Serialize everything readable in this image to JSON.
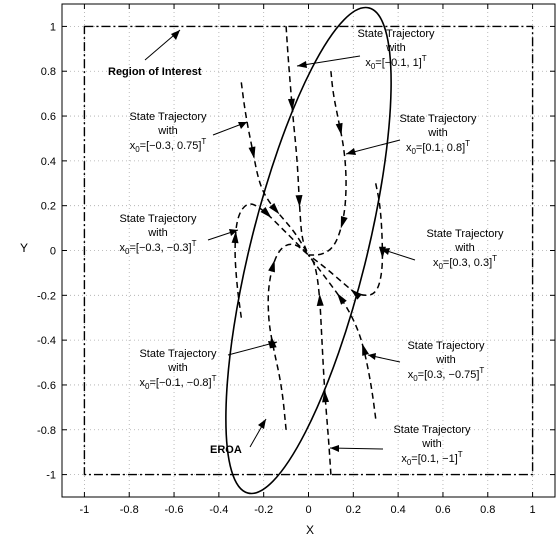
{
  "chart_data": {
    "type": "line",
    "xlabel": "X",
    "ylabel": "Y",
    "xlim": [
      -1.1,
      1.1
    ],
    "ylim": [
      -1.1,
      1.1
    ],
    "xticks": [
      "-1",
      "-0.8",
      "-0.6",
      "-0.4",
      "-0.2",
      "0",
      "0.2",
      "0.4",
      "0.6",
      "0.8",
      "1"
    ],
    "yticks": [
      "-1",
      "-0.8",
      "-0.6",
      "-0.4",
      "-0.2",
      "0",
      "0.2",
      "0.4",
      "0.6",
      "0.8",
      "1"
    ],
    "grid": true,
    "region_of_interest": {
      "label": "Region of  Interest",
      "x": [
        -1,
        1
      ],
      "y": [
        -1,
        1
      ],
      "style": "dash-dot"
    },
    "eroa": {
      "label": "EROA",
      "center": [
        0,
        0
      ],
      "style": "solid"
    },
    "trajectories": [
      {
        "id": "t1",
        "line1": "State Trajectory",
        "line2": "with",
        "x0": "x",
        "sub": "0",
        "val": "=[−0.1, 1]",
        "sup": "T",
        "points": [
          [
            -0.1,
            1.0
          ],
          [
            -0.09,
            0.85
          ],
          [
            -0.07,
            0.6
          ],
          [
            -0.05,
            0.4
          ],
          [
            -0.04,
            0.2
          ],
          [
            -0.03,
            0.05
          ],
          [
            0.0,
            -0.02
          ]
        ]
      },
      {
        "id": "t2",
        "line1": "State Trajectory",
        "line2": "with",
        "x0": "x",
        "sub": "0",
        "val": "=[0.1, 0.8]",
        "sup": "T",
        "points": [
          [
            0.1,
            0.8
          ],
          [
            0.11,
            0.7
          ],
          [
            0.13,
            0.6
          ],
          [
            0.16,
            0.45
          ],
          [
            0.17,
            0.3
          ],
          [
            0.16,
            0.15
          ],
          [
            0.12,
            0.02
          ],
          [
            0.06,
            -0.02
          ],
          [
            0.0,
            -0.02
          ]
        ]
      },
      {
        "id": "t3",
        "line1": "State Trajectory",
        "line2": "with",
        "x0": "x",
        "sub": "0",
        "val": "=[0.3, 0.3]",
        "sup": "T",
        "points": [
          [
            0.3,
            0.3
          ],
          [
            0.32,
            0.2
          ],
          [
            0.33,
            0.05
          ],
          [
            0.33,
            -0.1
          ],
          [
            0.3,
            -0.2
          ],
          [
            0.22,
            -0.2
          ],
          [
            0.16,
            -0.15
          ],
          [
            0.08,
            -0.08
          ],
          [
            0.0,
            -0.02
          ]
        ]
      },
      {
        "id": "t4",
        "line1": "State Trajectory",
        "line2": "with",
        "x0": "x",
        "sub": "0",
        "val": "=[0.3, −0.75]",
        "sup": "T",
        "points": [
          [
            0.3,
            -0.75
          ],
          [
            0.28,
            -0.6
          ],
          [
            0.25,
            -0.45
          ],
          [
            0.22,
            -0.35
          ],
          [
            0.17,
            -0.25
          ],
          [
            0.12,
            -0.18
          ],
          [
            0.06,
            -0.1
          ],
          [
            0.0,
            -0.02
          ]
        ]
      },
      {
        "id": "t5",
        "line1": "State Trajectory",
        "line2": "with",
        "x0": "x",
        "sub": "0",
        "val": "=[0.1, −1]",
        "sup": "T",
        "points": [
          [
            0.1,
            -1.0
          ],
          [
            0.09,
            -0.85
          ],
          [
            0.07,
            -0.6
          ],
          [
            0.06,
            -0.4
          ],
          [
            0.05,
            -0.2
          ],
          [
            0.03,
            -0.06
          ],
          [
            0.0,
            -0.02
          ]
        ]
      },
      {
        "id": "t6",
        "line1": "State Trajectory",
        "line2": "with",
        "x0": "x",
        "sub": "0",
        "val": "=[−0.1, −0.8]",
        "sup": "T",
        "points": [
          [
            -0.1,
            -0.8
          ],
          [
            -0.12,
            -0.6
          ],
          [
            -0.16,
            -0.42
          ],
          [
            -0.18,
            -0.3
          ],
          [
            -0.18,
            -0.15
          ],
          [
            -0.14,
            0.0
          ],
          [
            -0.07,
            0.04
          ],
          [
            0.0,
            -0.02
          ]
        ]
      },
      {
        "id": "t7",
        "line1": "State Trajectory",
        "line2": "with",
        "x0": "x",
        "sub": "0",
        "val": "=[−0.3, −0.3]",
        "sup": "T",
        "points": [
          [
            -0.3,
            -0.3
          ],
          [
            -0.32,
            -0.15
          ],
          [
            -0.33,
            0.0
          ],
          [
            -0.32,
            0.15
          ],
          [
            -0.27,
            0.22
          ],
          [
            -0.2,
            0.18
          ],
          [
            -0.12,
            0.1
          ],
          [
            -0.05,
            0.03
          ],
          [
            0.0,
            -0.02
          ]
        ]
      },
      {
        "id": "t8",
        "line1": "State Trajectory",
        "line2": "with",
        "x0": "x",
        "sub": "0",
        "val": "=[−0.3, 0.75]",
        "sup": "T",
        "points": [
          [
            -0.3,
            0.75
          ],
          [
            -0.28,
            0.6
          ],
          [
            -0.25,
            0.45
          ],
          [
            -0.22,
            0.3
          ],
          [
            -0.18,
            0.22
          ],
          [
            -0.12,
            0.15
          ],
          [
            -0.06,
            0.08
          ],
          [
            0.0,
            -0.02
          ]
        ]
      }
    ]
  }
}
